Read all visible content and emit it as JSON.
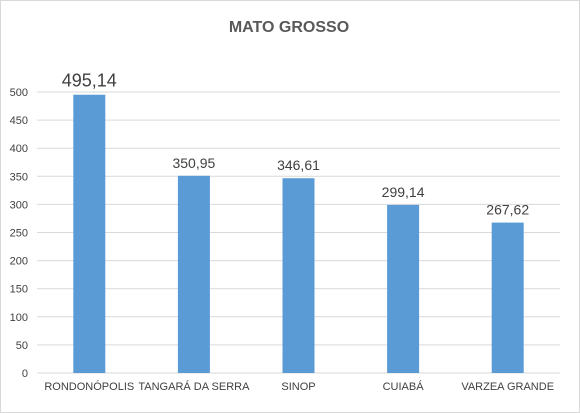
{
  "chart_data": {
    "type": "bar",
    "title": "MATO GROSSO",
    "xlabel": "",
    "ylabel": "",
    "categories": [
      "RONDONÓPOLIS",
      "TANGARÁ DA SERRA",
      "SINOP",
      "CUIABÁ",
      "VARZEA GRANDE"
    ],
    "values": [
      495.14,
      350.95,
      346.61,
      299.14,
      267.62
    ],
    "data_labels": [
      "495,14",
      "350,95",
      "346,61",
      "299,14",
      "267,62"
    ],
    "ylim": [
      0,
      500
    ],
    "yticks": [
      "0",
      "50",
      "100",
      "150",
      "200",
      "250",
      "300",
      "350",
      "400",
      "450",
      "500"
    ],
    "grid": true,
    "legend": "none",
    "bar_color": "#5b9bd5",
    "grid_color": "#d9d9d9"
  }
}
